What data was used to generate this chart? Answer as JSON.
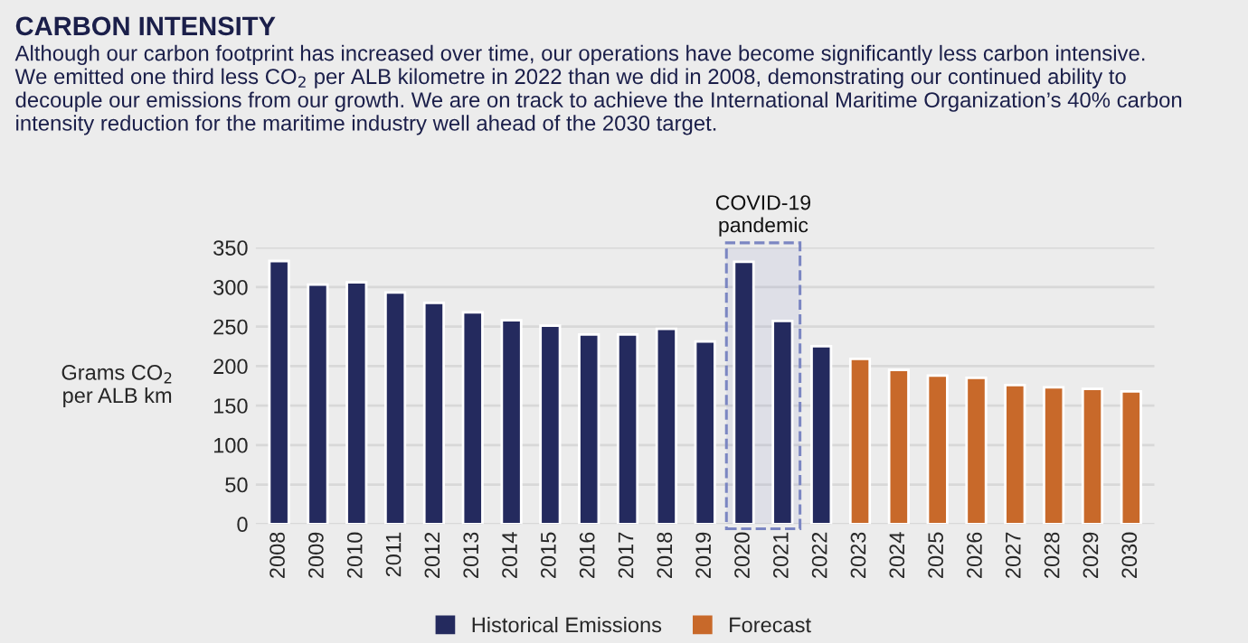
{
  "chart_data": {
    "type": "bar",
    "title": "CARBON INTENSITY",
    "subtitle": "Although our carbon footprint has increased over time, our operations have become significantly less carbon intensive.\nWe emitted one third less CO$_{2}$ per ALB kilometre in 2022 than we did in 2008, demonstrating our continued ability to\ndecouple our emissions from our growth. We are on track to achieve the International Maritime Organization’s 40% carbon\nintensity reduction for the maritime industry well ahead of the 2030 target.",
    "ylabel": "Grams CO$_{2}$ per ALB km",
    "categories": [
      "2008",
      "2009",
      "2010",
      "2011",
      "2012",
      "2013",
      "2014",
      "2015",
      "2016",
      "2017",
      "2018",
      "2019",
      "2020",
      "2021",
      "2022",
      "2023",
      "2024",
      "2025",
      "2026",
      "2027",
      "2028",
      "2029",
      "2030"
    ],
    "series": [
      {
        "name": "Historical Emissions",
        "color": "#242a5e",
        "values": [
          333,
          303,
          306,
          293,
          280,
          268,
          258,
          251,
          240,
          240,
          247,
          231,
          332,
          257,
          225,
          null,
          null,
          null,
          null,
          null,
          null,
          null,
          null
        ]
      },
      {
        "name": "Forecast",
        "color": "#c8692a",
        "values": [
          null,
          null,
          null,
          null,
          null,
          null,
          null,
          null,
          null,
          null,
          null,
          null,
          null,
          null,
          null,
          209,
          195,
          188,
          185,
          176,
          173,
          171,
          168
        ]
      }
    ],
    "ylim": [
      0,
      350
    ],
    "yticks": [
      0,
      50,
      100,
      150,
      200,
      250,
      300,
      350
    ],
    "bands": [
      {
        "axis": "x",
        "from": "2020",
        "to": "2021",
        "label": "COVID-19 pandemic",
        "color": "#7b86c2"
      }
    ],
    "grid": "y",
    "legend": "bottom"
  }
}
